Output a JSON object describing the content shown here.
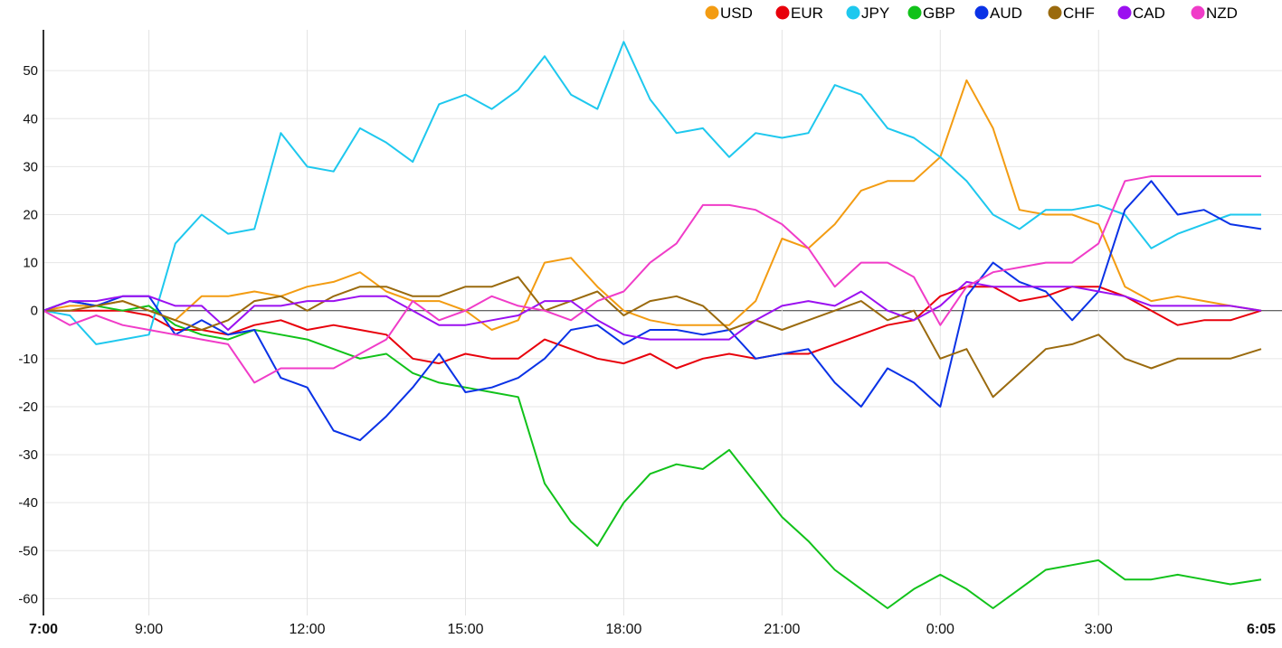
{
  "chart_data": {
    "type": "line",
    "title": "",
    "xlabel": "",
    "ylabel": "",
    "ylim": [
      -63.5,
      58.5
    ],
    "grid": true,
    "legend_position": "top-right",
    "y_ticks": [
      -60,
      -50,
      -40,
      -30,
      -20,
      -10,
      0,
      10,
      20,
      30,
      40,
      50
    ],
    "x_ticks": [
      {
        "hours": 0,
        "label": "7:00",
        "bold": true
      },
      {
        "hours": 2,
        "label": "9:00"
      },
      {
        "hours": 5,
        "label": "12:00"
      },
      {
        "hours": 8,
        "label": "15:00"
      },
      {
        "hours": 11,
        "label": "18:00"
      },
      {
        "hours": 14,
        "label": "21:00"
      },
      {
        "hours": 17,
        "label": "0:00"
      },
      {
        "hours": 20,
        "label": "3:00"
      },
      {
        "hours": 23.083,
        "label": "6:05",
        "bold": true
      }
    ],
    "x_hours_from_start": [
      0,
      0.5,
      1,
      1.5,
      2,
      2.5,
      3,
      3.5,
      4,
      4.5,
      5,
      5.5,
      6,
      6.5,
      7,
      7.5,
      8,
      8.5,
      9,
      9.5,
      10,
      10.5,
      11,
      11.5,
      12,
      12.5,
      13,
      13.5,
      14,
      14.5,
      15,
      15.5,
      16,
      16.5,
      17,
      17.5,
      18,
      18.5,
      19,
      19.5,
      20,
      20.5,
      21,
      21.5,
      22,
      22.5,
      23.083
    ],
    "series": [
      {
        "name": "USD",
        "color": "#f39c12",
        "values": [
          0,
          1,
          1,
          2,
          0,
          -2,
          3,
          3,
          4,
          3,
          5,
          6,
          8,
          4,
          2,
          2,
          0,
          -4,
          -2,
          10,
          11,
          5,
          0,
          -2,
          -3,
          -3,
          -3,
          2,
          15,
          13,
          18,
          25,
          27,
          27,
          32,
          48,
          38,
          21,
          20,
          20,
          18,
          5,
          2,
          3,
          2,
          1,
          0
        ]
      },
      {
        "name": "EUR",
        "color": "#e8000b",
        "values": [
          0,
          0,
          0,
          0,
          -1,
          -4,
          -4,
          -5,
          -3,
          -2,
          -4,
          -3,
          -4,
          -5,
          -10,
          -11,
          -9,
          -10,
          -10,
          -6,
          -8,
          -10,
          -11,
          -9,
          -12,
          -10,
          -9,
          -10,
          -9,
          -9,
          -7,
          -5,
          -3,
          -2,
          3,
          5,
          5,
          2,
          3,
          5,
          5,
          3,
          0,
          -3,
          -2,
          -2,
          0
        ]
      },
      {
        "name": "JPY",
        "color": "#1ec8ee",
        "values": [
          0,
          -1,
          -7,
          -6,
          -5,
          14,
          20,
          16,
          17,
          37,
          30,
          29,
          38,
          35,
          31,
          43,
          45,
          42,
          46,
          53,
          45,
          42,
          56,
          44,
          37,
          38,
          32,
          37,
          36,
          37,
          47,
          45,
          38,
          36,
          32,
          27,
          20,
          17,
          21,
          21,
          22,
          20,
          13,
          16,
          18,
          20,
          20
        ]
      },
      {
        "name": "GBP",
        "color": "#11c21a",
        "values": [
          0,
          2,
          1,
          0,
          1,
          -3,
          -5,
          -6,
          -4,
          -5,
          -6,
          -8,
          -10,
          -9,
          -13,
          -15,
          -16,
          -17,
          -18,
          -36,
          -44,
          -49,
          -40,
          -34,
          -32,
          -33,
          -29,
          -36,
          -43,
          -48,
          -54,
          -58,
          -62,
          -58,
          -55,
          -58,
          -62,
          -58,
          -54,
          -53,
          -52,
          -56,
          -56,
          -55,
          -56,
          -57,
          -56
        ]
      },
      {
        "name": "AUD",
        "color": "#0a32e6",
        "values": [
          0,
          2,
          1,
          3,
          3,
          -5,
          -2,
          -5,
          -4,
          -14,
          -16,
          -25,
          -27,
          -22,
          -16,
          -9,
          -17,
          -16,
          -14,
          -10,
          -4,
          -3,
          -7,
          -4,
          -4,
          -5,
          -4,
          -10,
          -9,
          -8,
          -15,
          -20,
          -12,
          -15,
          -20,
          3,
          10,
          6,
          4,
          -2,
          4,
          21,
          27,
          20,
          21,
          18,
          17
        ]
      },
      {
        "name": "CHF",
        "color": "#9a6a0e",
        "values": [
          0,
          0,
          1,
          2,
          0,
          -2,
          -4,
          -2,
          2,
          3,
          0,
          3,
          5,
          5,
          3,
          3,
          5,
          5,
          7,
          0,
          2,
          4,
          -1,
          2,
          3,
          1,
          -4,
          -2,
          -4,
          -2,
          0,
          2,
          -2,
          0,
          -10,
          -8,
          -18,
          -13,
          -8,
          -7,
          -5,
          -10,
          -12,
          -10,
          -10,
          -10,
          -8
        ]
      },
      {
        "name": "CAD",
        "color": "#9b10f0",
        "values": [
          0,
          2,
          2,
          3,
          3,
          1,
          1,
          -4,
          1,
          1,
          2,
          2,
          3,
          3,
          0,
          -3,
          -3,
          -2,
          -1,
          2,
          2,
          -2,
          -5,
          -6,
          -6,
          -6,
          -6,
          -2,
          1,
          2,
          1,
          4,
          0,
          -2,
          1,
          6,
          5,
          5,
          5,
          5,
          4,
          3,
          1,
          1,
          1,
          1,
          0
        ]
      },
      {
        "name": "NZD",
        "color": "#f03cc8",
        "values": [
          0,
          -3,
          -1,
          -3,
          -4,
          -5,
          -6,
          -7,
          -15,
          -12,
          -12,
          -12,
          -9,
          -6,
          2,
          -2,
          0,
          3,
          1,
          0,
          -2,
          2,
          4,
          10,
          14,
          22,
          22,
          21,
          18,
          13,
          5,
          10,
          10,
          7,
          -3,
          5,
          8,
          9,
          10,
          10,
          14,
          27,
          28,
          28,
          28,
          28,
          28
        ]
      }
    ]
  }
}
